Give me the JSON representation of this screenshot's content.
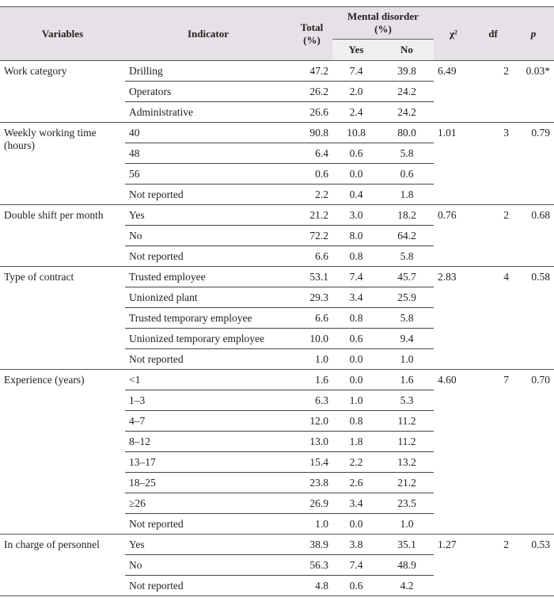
{
  "table": {
    "headers": {
      "variables": "Variables",
      "indicator": "Indicator",
      "total": "Total (%)",
      "mental_disorder": "Mental disorder (%)",
      "yes": "Yes",
      "no": "No",
      "chi2": "χ²",
      "df": "df",
      "p": "p"
    },
    "groups": [
      {
        "variable": "Work category",
        "chi2": "6.49",
        "df": "2",
        "p": "0.03*",
        "rows": [
          [
            "Drilling",
            "47.2",
            "7.4",
            "39.8"
          ],
          [
            "Operators",
            "26.2",
            "2.0",
            "24.2"
          ],
          [
            "Administrative",
            "26.6",
            "2.4",
            "24.2"
          ]
        ]
      },
      {
        "variable": "Weekly working time (hours)",
        "chi2": "1.01",
        "df": "3",
        "p": "0.79",
        "rows": [
          [
            "40",
            "90.8",
            "10.8",
            "80.0"
          ],
          [
            "48",
            "6.4",
            "0.6",
            "5.8"
          ],
          [
            "56",
            "0.6",
            "0.0",
            "0.6"
          ],
          [
            "Not reported",
            "2.2",
            "0.4",
            "1.8"
          ]
        ]
      },
      {
        "variable": "Double shift per month",
        "chi2": "0.76",
        "df": "2",
        "p": "0.68",
        "rows": [
          [
            "Yes",
            "21.2",
            "3.0",
            "18.2"
          ],
          [
            "No",
            "72.2",
            "8.0",
            "64.2"
          ],
          [
            "Not reported",
            "6.6",
            "0.8",
            "5.8"
          ]
        ]
      },
      {
        "variable": "Type of contract",
        "chi2": "2.83",
        "df": "4",
        "p": "0.58",
        "rows": [
          [
            "Trusted employee",
            "53.1",
            "7.4",
            "45.7"
          ],
          [
            "Unionized plant",
            "29.3",
            "3.4",
            "25.9"
          ],
          [
            "Trusted temporary employee",
            "6.6",
            "0.8",
            "5.8"
          ],
          [
            "Unionized temporary employee",
            "10.0",
            "0.6",
            "9.4"
          ],
          [
            "Not reported",
            "1.0",
            "0.0",
            "1.0"
          ]
        ]
      },
      {
        "variable": "Experience (years)",
        "chi2": "4.60",
        "df": "7",
        "p": "0.70",
        "rows": [
          [
            "<1",
            "1.6",
            "0.0",
            "1.6"
          ],
          [
            "1–3",
            "6.3",
            "1.0",
            "5.3"
          ],
          [
            "4–7",
            "12.0",
            "0.8",
            "11.2"
          ],
          [
            "8–12",
            "13.0",
            "1.8",
            "11.2"
          ],
          [
            "13–17",
            "15.4",
            "2.2",
            "13.2"
          ],
          [
            "18–25",
            "23.8",
            "2.6",
            "21.2"
          ],
          [
            "≥26",
            "26.9",
            "3.4",
            "23.5"
          ],
          [
            "Not reported",
            "1.0",
            "0.0",
            "1.0"
          ]
        ]
      },
      {
        "variable": "In charge of personnel",
        "chi2": "1.27",
        "df": "2",
        "p": "0.53",
        "rows": [
          [
            "Yes",
            "38.9",
            "3.8",
            "35.1"
          ],
          [
            "No",
            "56.3",
            "7.4",
            "48.9"
          ],
          [
            "Not reported",
            "4.8",
            "0.6",
            "4.2"
          ]
        ]
      }
    ]
  }
}
